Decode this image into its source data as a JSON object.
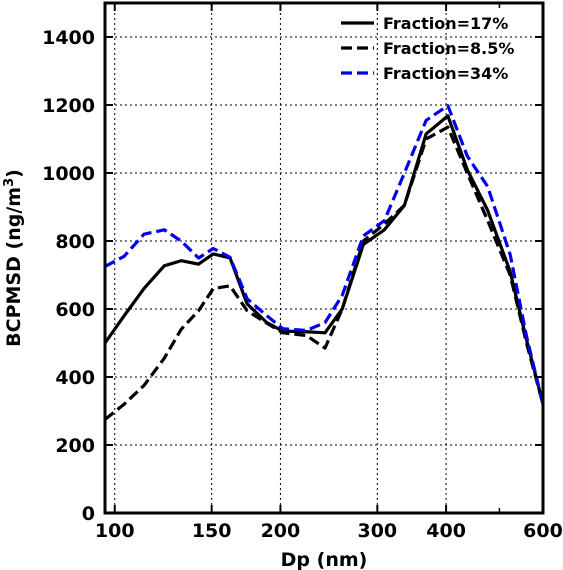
{
  "chart_data": {
    "type": "line",
    "title": "",
    "xlabel": "Dp (nm)",
    "ylabel_main": "BCPMSD (ng/m",
    "ylabel_sup": "3",
    "ylabel_end": ")",
    "x_scale": "log",
    "xlim": [
      96,
      600
    ],
    "ylim": [
      0,
      1500
    ],
    "x_ticks": [
      100,
      150,
      200,
      300,
      400,
      600
    ],
    "x_tick_labels": [
      "100",
      "150",
      "200",
      "300",
      "400",
      "600"
    ],
    "x_minor_ticks": [
      500
    ],
    "y_ticks": [
      0,
      200,
      400,
      600,
      800,
      1000,
      1200,
      1400
    ],
    "y_tick_labels": [
      "0",
      "200",
      "400",
      "600",
      "800",
      "1000",
      "1200",
      "1400"
    ],
    "grid": true,
    "legend_position": "top-right",
    "series": [
      {
        "name": "Fraction=17%",
        "color": "#000000",
        "dash": "solid",
        "points": [
          [
            96,
            500
          ],
          [
            104,
            580
          ],
          [
            113,
            660
          ],
          [
            123,
            727
          ],
          [
            132,
            742
          ],
          [
            142,
            732
          ],
          [
            151,
            762
          ],
          [
            162,
            750
          ],
          [
            174,
            615
          ],
          [
            189,
            560
          ],
          [
            202,
            535
          ],
          [
            223,
            533
          ],
          [
            241,
            530
          ],
          [
            259,
            600
          ],
          [
            283,
            790
          ],
          [
            309,
            833
          ],
          [
            336,
            905
          ],
          [
            368,
            1115
          ],
          [
            403,
            1168
          ],
          [
            437,
            1010
          ],
          [
            476,
            890
          ],
          [
            523,
            710
          ],
          [
            560,
            510
          ],
          [
            600,
            320
          ]
        ]
      },
      {
        "name": "Fraction=8.5%",
        "color": "#000000",
        "dash": "dashed",
        "points": [
          [
            96,
            275
          ],
          [
            104,
            320
          ],
          [
            113,
            375
          ],
          [
            123,
            455
          ],
          [
            132,
            540
          ],
          [
            142,
            595
          ],
          [
            151,
            660
          ],
          [
            162,
            668
          ],
          [
            174,
            595
          ],
          [
            189,
            558
          ],
          [
            202,
            530
          ],
          [
            223,
            522
          ],
          [
            241,
            485
          ],
          [
            259,
            600
          ],
          [
            283,
            800
          ],
          [
            309,
            850
          ],
          [
            336,
            905
          ],
          [
            368,
            1100
          ],
          [
            403,
            1135
          ],
          [
            437,
            1000
          ],
          [
            476,
            860
          ],
          [
            523,
            700
          ],
          [
            560,
            500
          ],
          [
            600,
            320
          ]
        ]
      },
      {
        "name": "Fraction=34%",
        "color": "#0000ee",
        "dash": "dashed",
        "points": [
          [
            96,
            725
          ],
          [
            104,
            755
          ],
          [
            113,
            820
          ],
          [
            123,
            833
          ],
          [
            132,
            800
          ],
          [
            142,
            750
          ],
          [
            151,
            778
          ],
          [
            162,
            752
          ],
          [
            174,
            630
          ],
          [
            189,
            580
          ],
          [
            202,
            542
          ],
          [
            223,
            537
          ],
          [
            241,
            560
          ],
          [
            259,
            640
          ],
          [
            283,
            815
          ],
          [
            309,
            860
          ],
          [
            336,
            1000
          ],
          [
            368,
            1155
          ],
          [
            403,
            1198
          ],
          [
            437,
            1050
          ],
          [
            476,
            960
          ],
          [
            523,
            760
          ],
          [
            560,
            520
          ],
          [
            600,
            320
          ]
        ]
      }
    ]
  }
}
